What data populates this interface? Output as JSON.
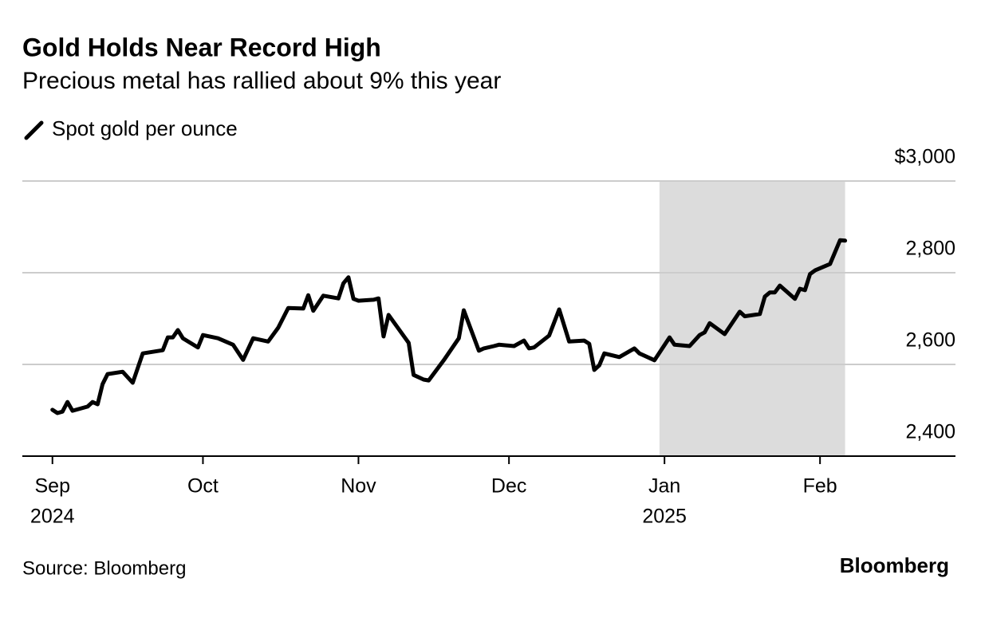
{
  "chart_data": {
    "type": "line",
    "title": "Gold Holds Near Record High",
    "subtitle": "Precious metal has rallied about 9% this year",
    "source": "Source: Bloomberg",
    "brand": "Bloomberg",
    "series": [
      {
        "name": "Spot gold per ounce",
        "color": "#000000",
        "x": [
          "2024-09-01",
          "2024-09-02",
          "2024-09-03",
          "2024-09-04",
          "2024-09-05",
          "2024-09-08",
          "2024-09-09",
          "2024-09-10",
          "2024-09-11",
          "2024-09-12",
          "2024-09-15",
          "2024-09-17",
          "2024-09-19",
          "2024-09-23",
          "2024-09-24",
          "2024-09-25",
          "2024-09-26",
          "2024-09-27",
          "2024-09-30",
          "2024-10-01",
          "2024-10-04",
          "2024-10-07",
          "2024-10-09",
          "2024-10-11",
          "2024-10-14",
          "2024-10-16",
          "2024-10-18",
          "2024-10-21",
          "2024-10-22",
          "2024-10-23",
          "2024-10-25",
          "2024-10-28",
          "2024-10-29",
          "2024-10-30",
          "2024-10-31",
          "2024-11-01",
          "2024-11-04",
          "2024-11-05",
          "2024-11-06",
          "2024-11-07",
          "2024-11-11",
          "2024-11-12",
          "2024-11-14",
          "2024-11-15",
          "2024-11-18",
          "2024-11-21",
          "2024-11-22",
          "2024-11-25",
          "2024-11-26",
          "2024-11-28",
          "2024-11-29",
          "2024-12-02",
          "2024-12-04",
          "2024-12-05",
          "2024-12-06",
          "2024-12-09",
          "2024-12-11",
          "2024-12-13",
          "2024-12-16",
          "2024-12-17",
          "2024-12-18",
          "2024-12-19",
          "2024-12-20",
          "2024-12-23",
          "2024-12-26",
          "2024-12-27",
          "2024-12-30",
          "2025-01-02",
          "2025-01-03",
          "2025-01-06",
          "2025-01-08",
          "2025-01-09",
          "2025-01-10",
          "2025-01-13",
          "2025-01-16",
          "2025-01-17",
          "2025-01-20",
          "2025-01-21",
          "2025-01-22",
          "2025-01-23",
          "2025-01-24",
          "2025-01-27",
          "2025-01-28",
          "2025-01-29",
          "2025-01-30",
          "2025-01-31",
          "2025-02-03",
          "2025-02-05",
          "2025-02-06"
        ],
        "values": [
          2501,
          2494,
          2497,
          2518,
          2499,
          2508,
          2518,
          2513,
          2557,
          2579,
          2584,
          2560,
          2624,
          2631,
          2659,
          2659,
          2675,
          2657,
          2637,
          2664,
          2657,
          2643,
          2610,
          2657,
          2650,
          2680,
          2723,
          2722,
          2751,
          2717,
          2750,
          2744,
          2777,
          2790,
          2743,
          2739,
          2741,
          2744,
          2661,
          2708,
          2647,
          2577,
          2567,
          2565,
          2609,
          2657,
          2718,
          2630,
          2635,
          2640,
          2643,
          2640,
          2652,
          2635,
          2637,
          2663,
          2720,
          2650,
          2652,
          2645,
          2588,
          2598,
          2624,
          2616,
          2635,
          2624,
          2609,
          2659,
          2643,
          2640,
          2664,
          2670,
          2690,
          2666,
          2715,
          2705,
          2710,
          2748,
          2757,
          2757,
          2772,
          2743,
          2765,
          2762,
          2797,
          2805,
          2819,
          2871,
          2870
        ]
      }
    ],
    "xlim": [
      "2024-08-26",
      "2025-02-28"
    ],
    "xticks": [
      {
        "value": "2024-09-01",
        "label": "Sep"
      },
      {
        "value": "2024-10-01",
        "label": "Oct"
      },
      {
        "value": "2024-11-01",
        "label": "Nov"
      },
      {
        "value": "2024-12-01",
        "label": "Dec"
      },
      {
        "value": "2025-01-01",
        "label": "Jan"
      },
      {
        "value": "2025-02-01",
        "label": "Feb"
      }
    ],
    "xtick_years": [
      {
        "value": "2024-09-01",
        "label": "2024"
      },
      {
        "value": "2025-01-01",
        "label": "2025"
      }
    ],
    "ylim": [
      2400,
      3000
    ],
    "yticks": [
      {
        "value": 2400,
        "label": "2,400"
      },
      {
        "value": 2600,
        "label": "2,600"
      },
      {
        "value": 2800,
        "label": "2,800"
      },
      {
        "value": 3000,
        "label": "$3,000"
      }
    ],
    "grid": true,
    "shaded_range": [
      "2024-12-31",
      "2025-02-06"
    ],
    "shade_color": "#dcdcdc"
  }
}
